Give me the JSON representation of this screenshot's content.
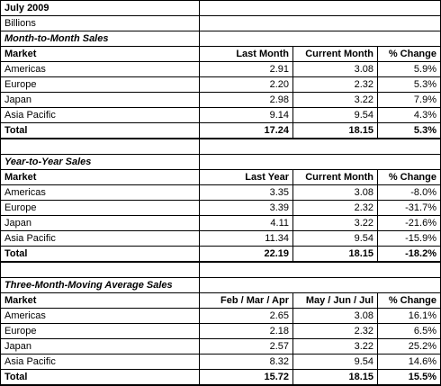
{
  "title": "July 2009",
  "units": "Billions",
  "sections": [
    {
      "heading": "Month-to-Month Sales",
      "columns": [
        "Market",
        "Last Month",
        "Current Month",
        "% Change"
      ],
      "rows": [
        [
          "Americas",
          "2.91",
          "3.08",
          "5.9%"
        ],
        [
          "Europe",
          "2.20",
          "2.32",
          "5.3%"
        ],
        [
          "Japan",
          "2.98",
          "3.22",
          "7.9%"
        ],
        [
          "Asia Pacific",
          "9.14",
          "9.54",
          "4.3%"
        ]
      ],
      "total": [
        "Total",
        "17.24",
        "18.15",
        "5.3%"
      ]
    },
    {
      "heading": "Year-to-Year Sales",
      "columns": [
        "Market",
        "Last Year",
        "Current Month",
        "% Change"
      ],
      "rows": [
        [
          "Americas",
          "3.35",
          "3.08",
          "-8.0%"
        ],
        [
          "Europe",
          "3.39",
          "2.32",
          "-31.7%"
        ],
        [
          "Japan",
          "4.11",
          "3.22",
          "-21.6%"
        ],
        [
          "Asia Pacific",
          "11.34",
          "9.54",
          "-15.9%"
        ]
      ],
      "total": [
        "Total",
        "22.19",
        "18.15",
        "-18.2%"
      ]
    },
    {
      "heading": "Three-Month-Moving Average Sales",
      "columns": [
        "Market",
        "Feb / Mar / Apr",
        "May / Jun / Jul",
        "% Change"
      ],
      "rows": [
        [
          "Americas",
          "2.65",
          "3.08",
          "16.1%"
        ],
        [
          "Europe",
          "2.18",
          "2.32",
          "6.5%"
        ],
        [
          "Japan",
          "2.57",
          "3.22",
          "25.2%"
        ],
        [
          "Asia Pacific",
          "8.32",
          "9.54",
          "14.6%"
        ]
      ],
      "total": [
        "Total",
        "15.72",
        "18.15",
        "15.5%"
      ]
    }
  ]
}
